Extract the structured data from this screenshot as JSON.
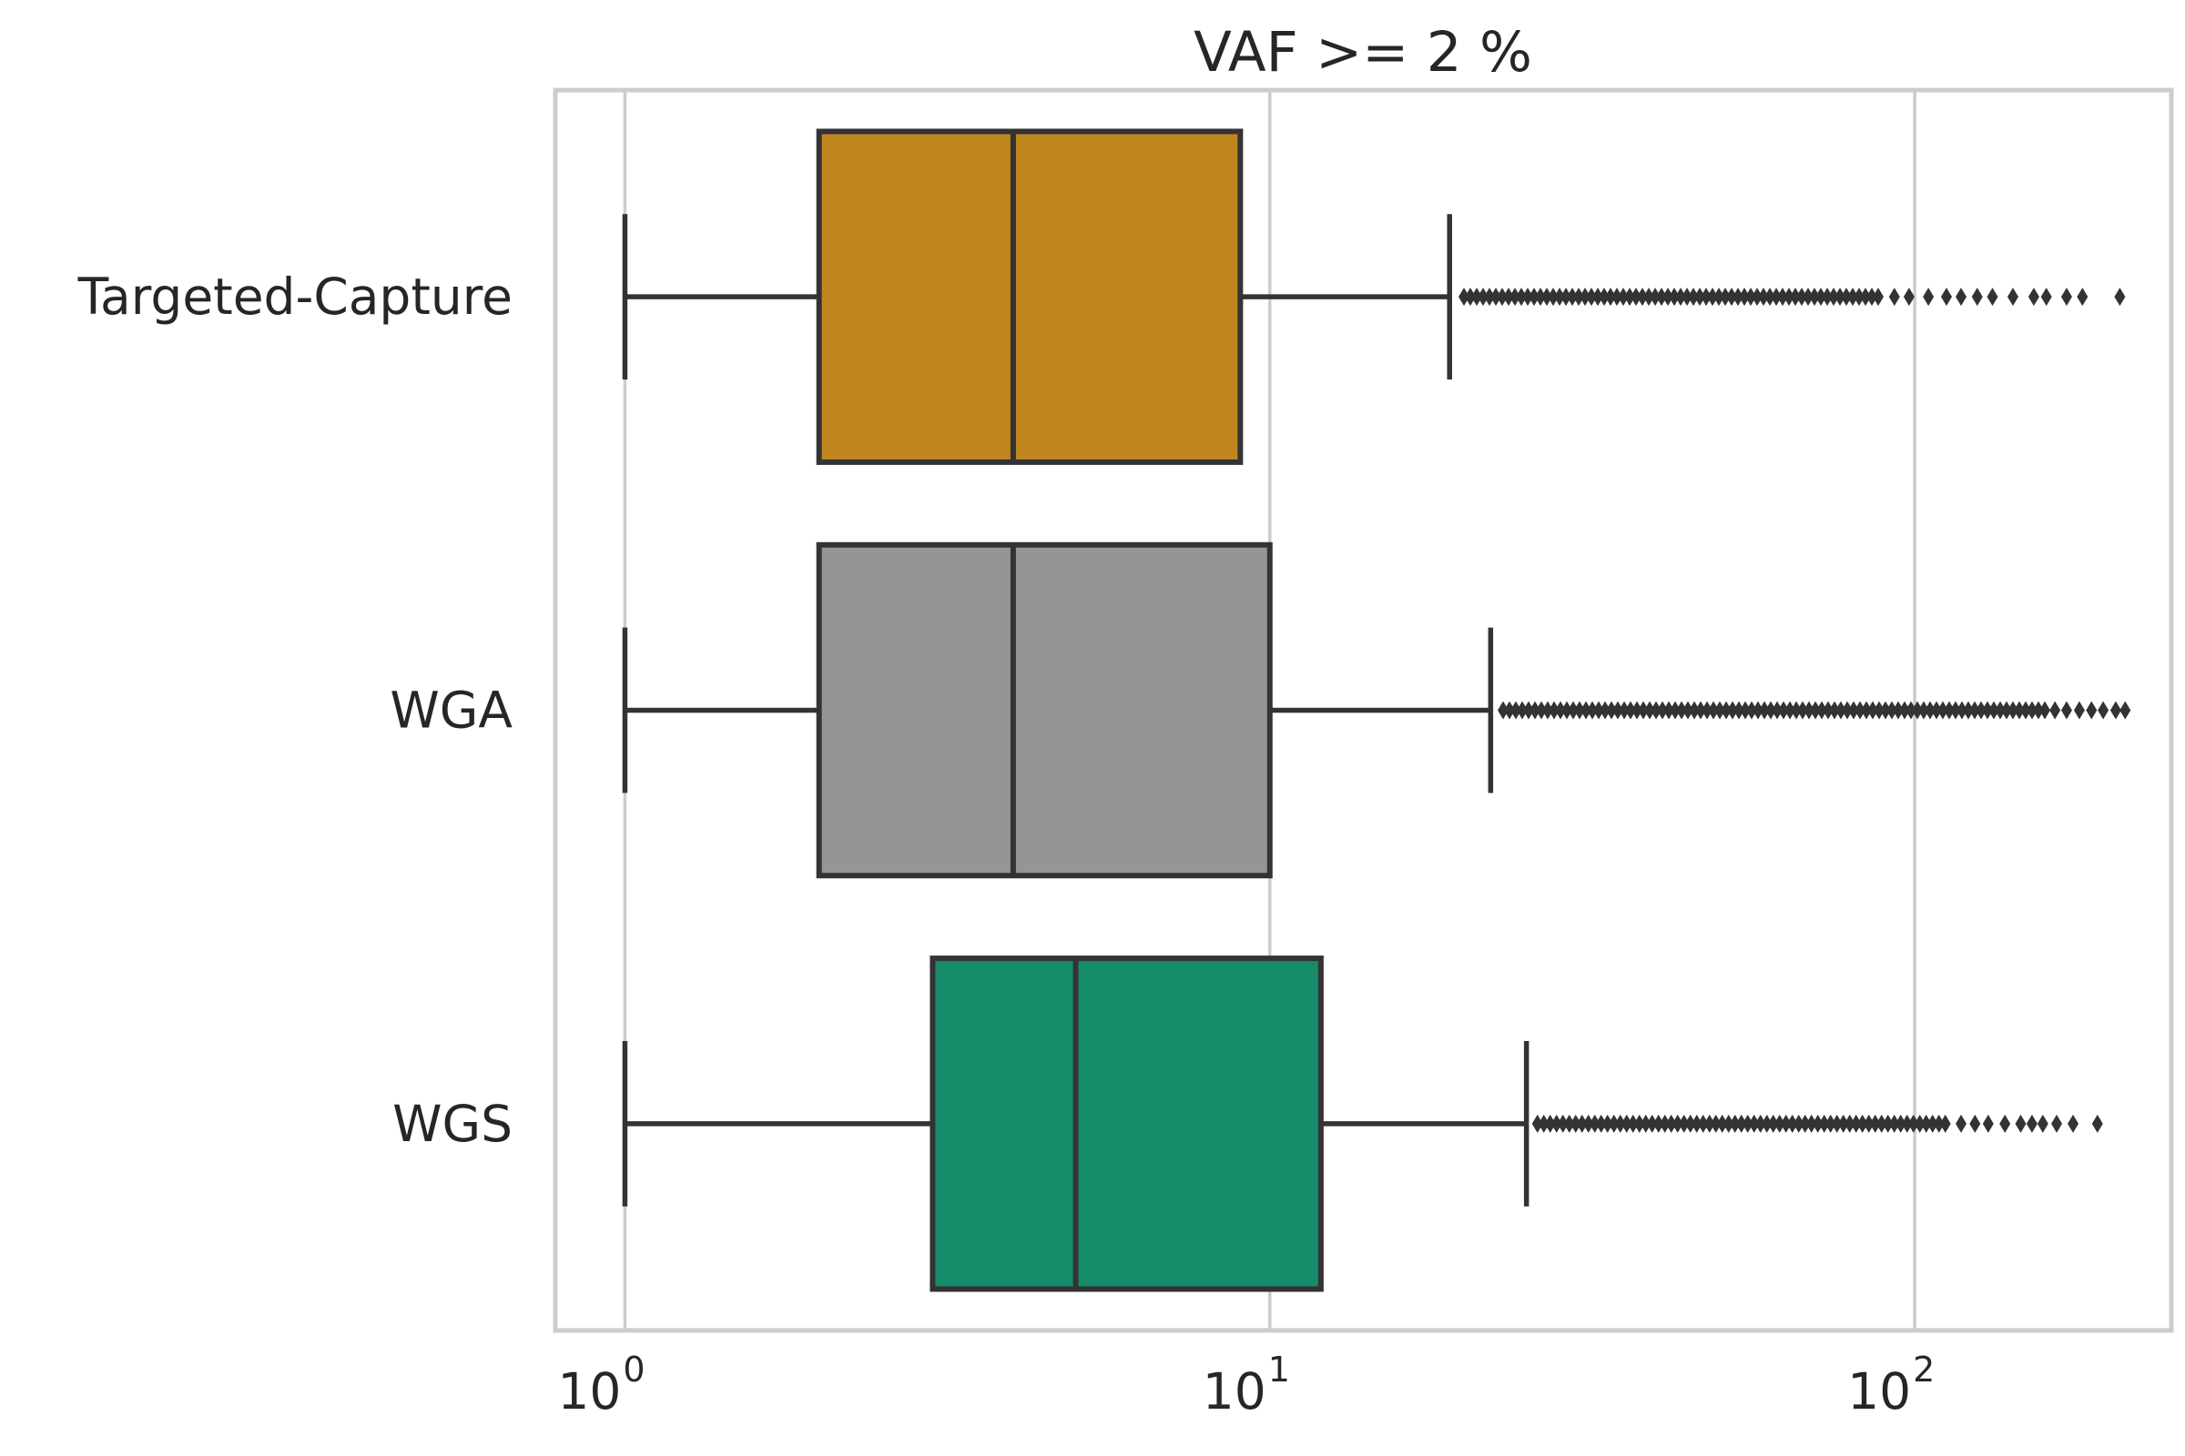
{
  "chart_data": {
    "type": "boxplot",
    "orientation": "horizontal",
    "title": "VAF >= 2 %",
    "xscale": "log",
    "xlim": [
      0.78,
      250
    ],
    "grid": true,
    "x_ticks": [
      {
        "value": 1,
        "base": "10",
        "exp": "0"
      },
      {
        "value": 10,
        "base": "10",
        "exp": "1"
      },
      {
        "value": 100,
        "base": "10",
        "exp": "2"
      }
    ],
    "categories": [
      "Targeted-Capture",
      "WGA",
      "WGS"
    ],
    "series": [
      {
        "category": "Targeted-Capture",
        "color": "#c1871f",
        "whisker_low": 1,
        "q1": 2,
        "median": 4,
        "q3": 9,
        "whisker_high": 19,
        "outlier_min": 20,
        "outlier_dense_end": 88,
        "outlier_sparse": [
          93,
          98,
          105,
          112,
          118,
          125,
          132,
          142,
          153,
          160,
          172,
          182,
          208
        ]
      },
      {
        "category": "WGA",
        "color": "#959595",
        "whisker_low": 1,
        "q1": 2,
        "median": 4,
        "q3": 10,
        "whisker_high": 22,
        "outlier_min": 23,
        "outlier_dense_end": 160,
        "outlier_sparse": [
          165,
          172,
          180,
          188,
          196,
          205,
          212
        ]
      },
      {
        "category": "WGS",
        "color": "#168b6a",
        "whisker_low": 1,
        "q1": 3,
        "median": 5,
        "q3": 12,
        "whisker_high": 25,
        "outlier_min": 26,
        "outlier_dense_end": 112,
        "outlier_sparse": [
          118,
          124,
          130,
          138,
          146,
          152,
          158,
          166,
          176,
          192
        ]
      }
    ]
  }
}
